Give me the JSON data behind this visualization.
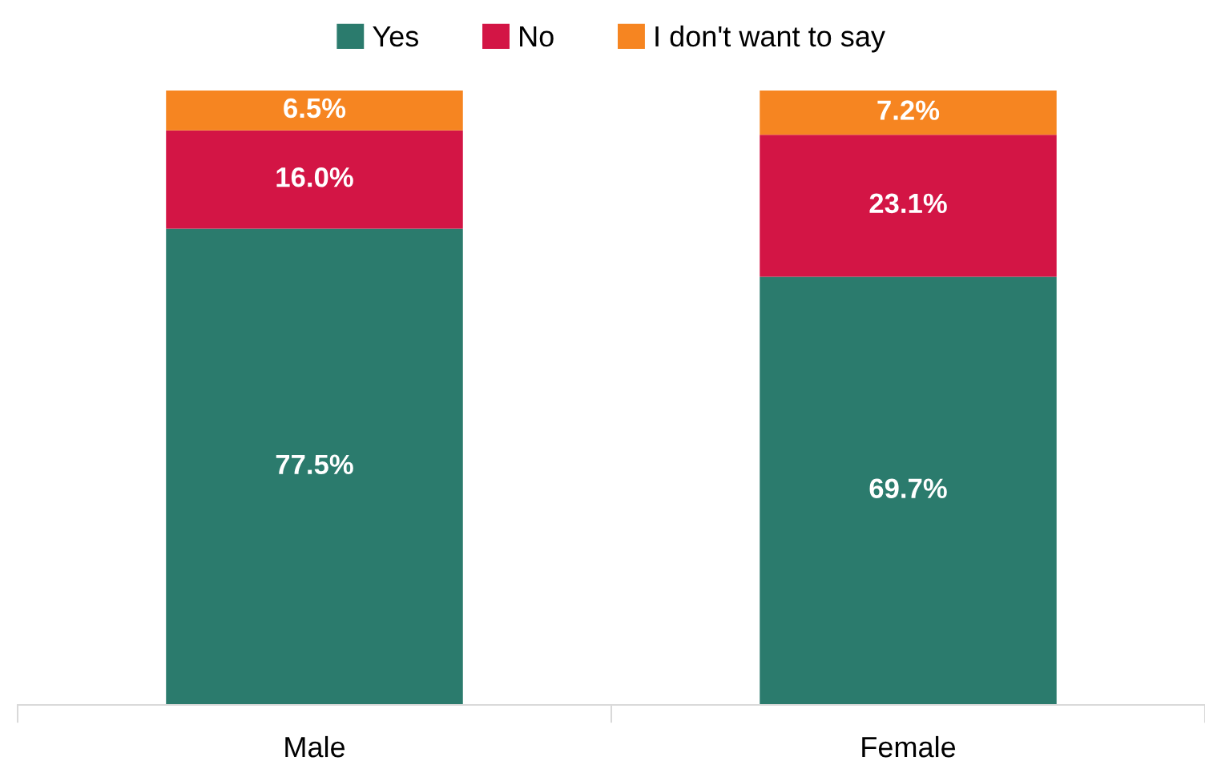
{
  "chart_data": {
    "type": "bar",
    "stacked": true,
    "categories": [
      "Male",
      "Female"
    ],
    "series": [
      {
        "name": "Yes",
        "color": "#2b7b6d",
        "values": [
          77.5,
          69.7
        ],
        "value_labels": [
          "77.5%",
          "69.7%"
        ]
      },
      {
        "name": "No",
        "color": "#d31545",
        "values": [
          16.0,
          23.1
        ],
        "value_labels": [
          "16.0%",
          "23.1%"
        ]
      },
      {
        "name": "I don't want to say",
        "color": "#f68521",
        "values": [
          6.5,
          7.2
        ],
        "value_labels": [
          "6.5%",
          "7.2%"
        ]
      }
    ],
    "legend": "top",
    "tick_labels": "x"
  }
}
